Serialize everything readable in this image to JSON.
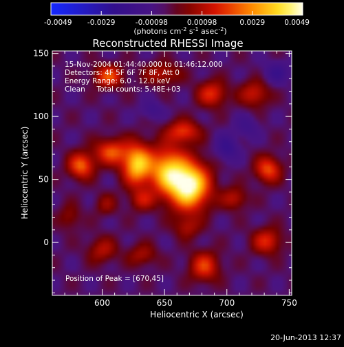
{
  "chart_data": {
    "type": "heatmap",
    "title": "Reconstructed RHESSI Image",
    "xlabel": "Heliocentric X (arcsec)",
    "ylabel": "Heliocentric Y (arcsec)",
    "xlim": [
      560,
      752
    ],
    "ylim": [
      -42,
      152
    ],
    "xticks": [
      600,
      650,
      700,
      750
    ],
    "yticks": [
      0,
      50,
      100,
      150
    ],
    "colorbar": {
      "ticks": [
        "-0.0049",
        "-0.0029",
        "-0.00098",
        "0.00098",
        "0.0029",
        "0.0049"
      ],
      "range": [
        -0.0049,
        0.0049
      ],
      "units": [
        "(photons cm",
        "-2",
        " s",
        "-1",
        " asec",
        "-2",
        ")"
      ]
    },
    "annotations": [
      "15-Nov-2004 01:44:40.000 to 01:46:12.000",
      "Detectors: 4F 5F 6F 7F 8F, Att 0",
      "Energy Range: 6.0 - 12.0 keV",
      "Clean     Total counts: 5.48E+03"
    ],
    "peak_label": "Position of Peak = [670,45]",
    "sources": [
      {
        "x": 670,
        "y": 45,
        "amp": 1.0,
        "sx": 11,
        "sy": 13
      },
      {
        "x": 652,
        "y": 57,
        "amp": 0.7,
        "sx": 10,
        "sy": 13
      },
      {
        "x": 628,
        "y": 62,
        "amp": 0.8,
        "sx": 8,
        "sy": 11
      },
      {
        "x": 607,
        "y": 72,
        "amp": 0.5,
        "sx": 9,
        "sy": 7
      },
      {
        "x": 583,
        "y": 61,
        "amp": 0.55,
        "sx": 7,
        "sy": 7
      },
      {
        "x": 632,
        "y": 34,
        "amp": 0.3,
        "sx": 7,
        "sy": 6
      },
      {
        "x": 665,
        "y": 88,
        "amp": 0.45,
        "sx": 9,
        "sy": 6
      },
      {
        "x": 605,
        "y": 132,
        "amp": 0.5,
        "sx": 8,
        "sy": 6
      },
      {
        "x": 648,
        "y": 134,
        "amp": 0.3,
        "sx": 10,
        "sy": 6
      },
      {
        "x": 688,
        "y": 118,
        "amp": 0.42,
        "sx": 8,
        "sy": 7
      },
      {
        "x": 722,
        "y": 118,
        "amp": 0.35,
        "sx": 8,
        "sy": 7
      },
      {
        "x": 733,
        "y": 58,
        "amp": 0.5,
        "sx": 7,
        "sy": 7
      },
      {
        "x": 706,
        "y": 35,
        "amp": 0.3,
        "sx": 7,
        "sy": 6
      },
      {
        "x": 732,
        "y": 1,
        "amp": 0.4,
        "sx": 8,
        "sy": 7
      },
      {
        "x": 682,
        "y": -19,
        "amp": 0.45,
        "sx": 8,
        "sy": 8
      },
      {
        "x": 632,
        "y": -10,
        "amp": 0.25,
        "sx": 8,
        "sy": 6
      },
      {
        "x": 600,
        "y": -6,
        "amp": 0.28,
        "sx": 8,
        "sy": 7
      },
      {
        "x": 668,
        "y": 12,
        "amp": 0.25,
        "sx": 7,
        "sy": 6
      },
      {
        "x": 574,
        "y": 20,
        "amp": 0.2,
        "sx": 6,
        "sy": 7
      },
      {
        "x": 603,
        "y": 30,
        "amp": 0.2,
        "sx": 6,
        "sy": 6
      },
      {
        "x": 700,
        "y": 75,
        "amp": -0.3,
        "sx": 6,
        "sy": 7
      },
      {
        "x": 740,
        "y": 135,
        "amp": -0.25,
        "sx": 7,
        "sy": 6
      },
      {
        "x": 640,
        "y": 105,
        "amp": -0.2,
        "sx": 6,
        "sy": 5
      },
      {
        "x": 716,
        "y": 92,
        "amp": -0.2,
        "sx": 6,
        "sy": 6
      }
    ]
  },
  "footer": {
    "timestamp": "20-Jun-2013 12:37"
  }
}
